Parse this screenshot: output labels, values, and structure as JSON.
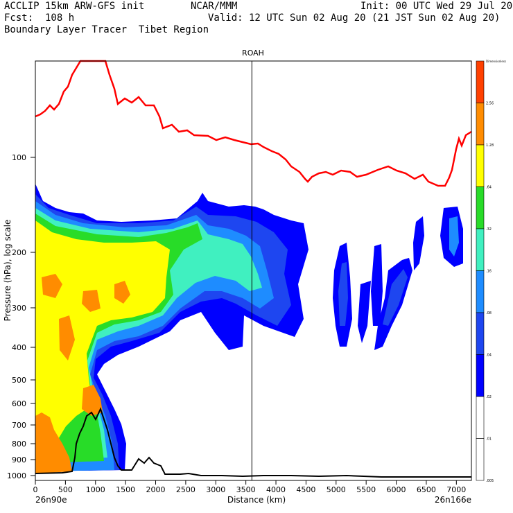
{
  "header": {
    "model": "ACCLIP 15km ARW-GFS init",
    "org": "NCAR/MMM",
    "init": "Init: 00 UTC Wed 29 Jul 20",
    "fcst": "Fcst:  108 h",
    "valid": "Valid: 12 UTC Sun 02 Aug 20 (21 JST Sun 02 Aug 20)",
    "product": "Boundary Layer Tracer  Tibet Region"
  },
  "chart_data": {
    "type": "heatmap",
    "title": "ROAH",
    "xlabel": "Distance (km)",
    "ylabel": "Pressure (hPa), log scale",
    "xlim": [
      0,
      7250
    ],
    "ylim": [
      1050,
      50
    ],
    "x_ticks": [
      "0",
      "500",
      "1000",
      "1500",
      "2000",
      "2500",
      "3000",
      "3500",
      "4000",
      "4500",
      "5000",
      "5500",
      "6000",
      "6500",
      "7000"
    ],
    "y_ticks": [
      "100",
      "200",
      "300",
      "400",
      "500",
      "600",
      "700",
      "800",
      "900",
      "1000"
    ],
    "x_start_label": "26n90e",
    "x_end_label": "26n166e",
    "vertical_marker_km": 3600,
    "colorbar": {
      "levels": [
        "Dimensionless",
        "2.56",
        "1.28",
        ".64",
        ".32",
        ".16",
        ".08",
        ".04",
        ".02",
        ".01",
        ".005"
      ],
      "colors": [
        "#ff4000",
        "#ff8c00",
        "#ffff00",
        "#28dc28",
        "#40f0c0",
        "#1e8cff",
        "#1e46f0",
        "#0000ff",
        "#ffffff",
        "#ffffff"
      ]
    },
    "tropopause_line_color": "#ff0000",
    "terrain_line_color": "#000000"
  }
}
